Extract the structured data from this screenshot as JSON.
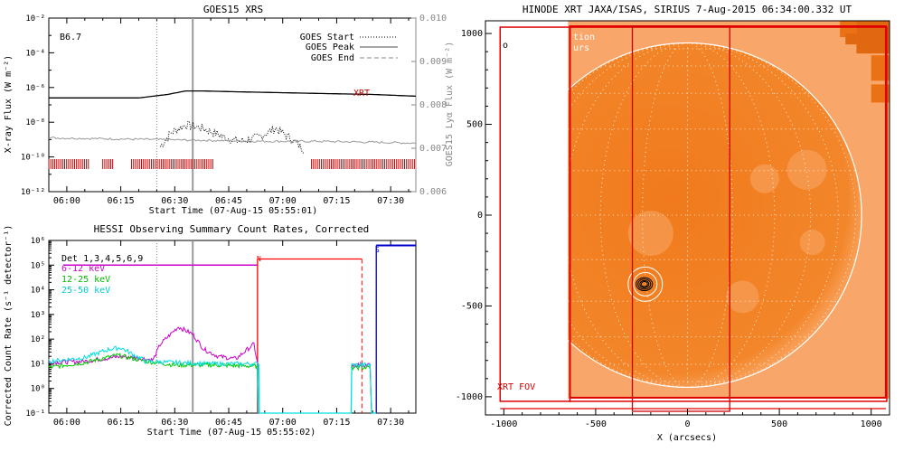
{
  "goes_panel": {
    "title": "GOES15 XRS",
    "class_label": "B6.7",
    "xrt_label": "XRT",
    "xlabel": "Start Time (07-Aug-15 05:55:01)",
    "ylabel": "X-ray Flux (W m⁻²)",
    "y2label": "GOES15 Lyα Flux (W m⁻²)",
    "legend": [
      "GOES Start",
      "GOES Peak",
      "GOES End"
    ],
    "colors": {
      "flux": "#000000",
      "lya": "#999999",
      "markers": "#cc0000",
      "peak": "#999999"
    }
  },
  "hessi_panel": {
    "title": "HESSI Observing Summary Count Rates, Corrected",
    "xlabel": "Start Time (07-Aug-15 05:55:02)",
    "ylabel": "Corrected Count Rate (s⁻¹ detector⁻¹)",
    "legend": [
      {
        "label": "Det 1,3,4,5,6,9",
        "color": "#000000"
      },
      {
        "label": "6-12 keV",
        "color": "#cc00cc"
      },
      {
        "label": "12-25 keV",
        "color": "#00cc00"
      },
      {
        "label": "25-50 keV",
        "color": "#00dddd"
      }
    ],
    "markers": {
      "N": "N",
      "S": "S"
    },
    "colors": {
      "night": "#ff0000",
      "saa": "#0000cc"
    }
  },
  "xrt_panel": {
    "title": "HINODE XRT JAXA/ISAS, SIRIUS  7-Aug-2015 06:34:00.332 UT",
    "xlabel": "X (arcsecs)",
    "overlay_text_1": "tion",
    "overlay_text_2": "urs",
    "fov_label": "XRT FOV",
    "corner_mark": "o",
    "colors": {
      "disk": "#f07a1a",
      "background": "#f8a060",
      "fov": "#e00000",
      "grid": "#ffffff"
    }
  },
  "chart_data": [
    {
      "type": "line",
      "title": "GOES15 XRS",
      "xlabel": "Start Time (07-Aug-15 05:55:01)",
      "ylabel": "X-ray Flux (W m⁻²)",
      "y2label": "GOES15 Lyα Flux (W m⁻²)",
      "x_ticks": [
        "06:00",
        "06:15",
        "06:30",
        "06:45",
        "07:00",
        "07:15",
        "07:30"
      ],
      "y_ticks": [
        "10⁻²",
        "10⁻⁴",
        "10⁻⁶",
        "10⁻⁸",
        "10⁻¹⁰",
        "10⁻¹²"
      ],
      "y2_ticks": [
        "0.010",
        "0.009",
        "0.008",
        "0.007",
        "0.006"
      ],
      "xlim_min": [
        -5,
        97
      ],
      "ylim_log10": [
        -12,
        -2
      ],
      "y2lim": [
        0.006,
        0.01
      ],
      "y_scale": "log",
      "goes_start_min": 25,
      "goes_peak_min": 35,
      "series": [
        {
          "name": "",
          "style": "solid-black",
          "t_min": [
            -5,
            10,
            20,
            28,
            33,
            38,
            48,
            60,
            72,
            85,
            97
          ],
          "log10_flux": [
            -6.6,
            -6.6,
            -6.6,
            -6.4,
            -6.2,
            -6.2,
            -6.25,
            -6.3,
            -6.35,
            -6.4,
            -6.5
          ]
        },
        {
          "name": "",
          "style": "dotted-black",
          "t_min": [
            26,
            29,
            33,
            37,
            41,
            44,
            48,
            51,
            54,
            58,
            62,
            66
          ],
          "log10_flux": [
            -9.4,
            -8.6,
            -8.15,
            -8.3,
            -8.6,
            -8.9,
            -9.1,
            -9.0,
            -8.8,
            -8.35,
            -8.9,
            -9.6
          ]
        },
        {
          "name": "",
          "style": "solid-grey",
          "t_min": [
            -5,
            10,
            25,
            40,
            55,
            70,
            85,
            97
          ],
          "log10_flux": [
            -8.9,
            -8.95,
            -9.0,
            -9.05,
            -9.1,
            -9.1,
            -9.15,
            -9.2
          ]
        }
      ],
      "xrt_intervals_min": [
        [
          -5,
          6
        ],
        [
          10,
          13
        ],
        [
          18,
          41
        ],
        [
          68,
          97
        ]
      ]
    },
    {
      "type": "line",
      "title": "HESSI Observing Summary Count Rates, Corrected",
      "xlabel": "Start Time (07-Aug-15 05:55:02)",
      "ylabel": "Corrected Count Rate (s⁻¹ detector⁻¹)",
      "x_ticks": [
        "06:00",
        "06:15",
        "06:30",
        "06:45",
        "07:00",
        "07:15",
        "07:30"
      ],
      "y_ticks": [
        "10⁶",
        "10⁵",
        "10⁴",
        "10³",
        "10²",
        "10¹",
        "10⁰",
        "10⁻¹"
      ],
      "xlim_min": [
        -5,
        97
      ],
      "ylim_log10": [
        -1,
        6
      ],
      "y_scale": "log",
      "night_start_min": 53,
      "saa_start_min": 86,
      "series": [
        {
          "name": "6-12 keV",
          "t_min": [
            -5,
            5,
            15,
            22,
            24,
            26,
            31,
            35,
            38,
            42,
            47,
            52,
            53
          ],
          "log10_rate": [
            1.05,
            1.1,
            1.3,
            1.2,
            1.15,
            1.8,
            2.5,
            2.2,
            1.6,
            1.3,
            1.2,
            1.8,
            1.0
          ]
        },
        {
          "name": "12-25 keV",
          "t_min": [
            -5,
            5,
            14,
            22,
            30,
            40,
            53
          ],
          "log10_rate": [
            0.85,
            1.05,
            1.35,
            1.1,
            0.95,
            0.95,
            0.9
          ]
        },
        {
          "name": "25-50 keV",
          "t_min": [
            -5,
            5,
            12,
            15,
            22,
            30,
            40,
            53
          ],
          "log10_rate": [
            1.1,
            1.25,
            1.6,
            1.65,
            1.1,
            1.05,
            1.0,
            1.0
          ]
        }
      ]
    },
    {
      "type": "scatter",
      "title": "HINODE XRT JAXA/ISAS, SIRIUS  7-Aug-2015 06:34:00.332 UT",
      "xlabel": "X (arcsecs)",
      "x_ticks": [
        "-1000",
        "-500",
        "0",
        "500",
        "1000"
      ],
      "y_ticks": [
        "1000",
        "500",
        "0",
        "-500",
        "-1000"
      ],
      "xlim": [
        -1100,
        1100
      ],
      "ylim": [
        -1100,
        1070
      ],
      "solar_radius_arcsec": 948,
      "source_center_arcsec": [
        -230,
        -380
      ]
    }
  ]
}
